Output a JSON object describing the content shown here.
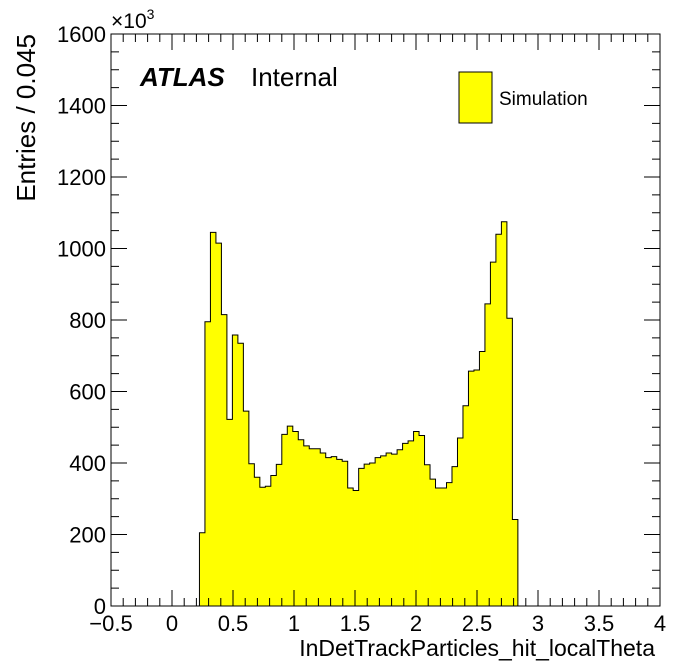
{
  "chart_data": {
    "type": "bar",
    "histogram": true,
    "bin_width": 0.045,
    "xlabel": "InDetTrackParticles_hit_localTheta",
    "ylabel": "Entries / 0.045",
    "y_multiplier": "×10",
    "y_multiplier_exp": "3",
    "xlim": [
      -0.5,
      4.0
    ],
    "ylim": [
      0,
      1600
    ],
    "x_ticks": [
      -0.5,
      0,
      0.5,
      1,
      1.5,
      2,
      2.5,
      3,
      3.5,
      4
    ],
    "x_tick_labels": [
      "−0.5",
      "0",
      "0.5",
      "1",
      "1.5",
      "2",
      "2.5",
      "3",
      "3.5",
      "4"
    ],
    "y_ticks": [
      0,
      200,
      400,
      600,
      800,
      1000,
      1200,
      1400,
      1600
    ],
    "y_tick_labels": [
      "0",
      "200",
      "400",
      "600",
      "800",
      "1000",
      "1200",
      "1400",
      "1600"
    ],
    "grid": false,
    "legend_position": "top-right",
    "fill_color": "#ffff00",
    "line_color": "#000000",
    "series": [
      {
        "name": "Simulation",
        "bin_start": 0.225,
        "values": [
          205,
          795,
          1045,
          1015,
          815,
          522,
          758,
          735,
          545,
          398,
          360,
          332,
          335,
          365,
          396,
          480,
          503,
          488,
          465,
          448,
          440,
          440,
          428,
          415,
          418,
          410,
          405,
          330,
          323,
          385,
          397,
          400,
          415,
          420,
          428,
          425,
          437,
          455,
          462,
          488,
          477,
          395,
          355,
          330,
          330,
          345,
          390,
          470,
          560,
          657,
          660,
          712,
          845,
          962,
          1040,
          1075,
          805,
          242
        ]
      }
    ]
  },
  "atlas_label": "ATLAS",
  "atlas_status": "Internal"
}
